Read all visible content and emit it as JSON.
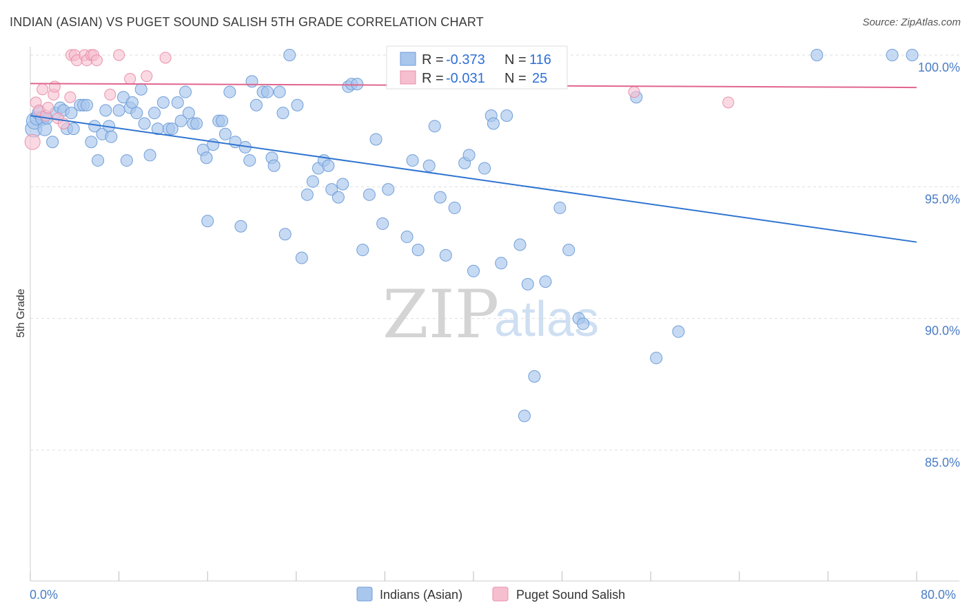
{
  "title": "INDIAN (ASIAN) VS PUGET SOUND SALISH 5TH GRADE CORRELATION CHART",
  "source": "Source: ZipAtlas.com",
  "watermark": {
    "zip": "ZIP",
    "atlas": "atlas"
  },
  "colors": {
    "blue_fill": "#a9c6ec",
    "blue_stroke": "#6f9ed8",
    "blue_line": "#2f74d0",
    "pink_fill": "#f6bfd0",
    "pink_stroke": "#e98fab",
    "pink_line": "#e0648e",
    "tick_text": "#4a7cc4",
    "grid": "#dddddd"
  },
  "legend_box": {
    "rows": [
      {
        "r_label": "R =",
        "r_value": "-0.373",
        "n_label": "N =",
        "n_value": "116",
        "color": "#a9c6ec"
      },
      {
        "r_label": "R =",
        "r_value": "-0.031",
        "n_label": "N =",
        "n_value": "25",
        "color": "#f6bfd0"
      }
    ]
  },
  "chart_data": {
    "type": "scatter",
    "title": "INDIAN (ASIAN) VS PUGET SOUND SALISH 5TH GRADE CORRELATION CHART",
    "xlabel": "",
    "ylabel": "5th Grade",
    "xlim": [
      0,
      80
    ],
    "ylim": [
      80.5,
      100.8
    ],
    "x_tick_labels": [
      "0.0%",
      "80.0%"
    ],
    "y_ticks": [
      85,
      90,
      95,
      100
    ],
    "y_tick_labels": [
      "85.0%",
      "90.0%",
      "95.0%",
      "100.0%"
    ],
    "grid": "horizontal dashed",
    "legend_position": "bottom",
    "series": [
      {
        "name": "Indians (Asian)",
        "color": "#a9c6ec",
        "trend": {
          "x": [
            0,
            80
          ],
          "y": [
            97.7,
            92.9
          ]
        },
        "points": [
          [
            0.3,
            97.2
          ],
          [
            0.4,
            97.5
          ],
          [
            0.6,
            97.6
          ],
          [
            0.8,
            97.8
          ],
          [
            1.1,
            97.6
          ],
          [
            1.3,
            97.2
          ],
          [
            1.5,
            97.6
          ],
          [
            2.0,
            96.7
          ],
          [
            2.3,
            97.8
          ],
          [
            2.7,
            98.0
          ],
          [
            3.0,
            97.9
          ],
          [
            3.3,
            97.2
          ],
          [
            3.7,
            97.8
          ],
          [
            3.9,
            97.2
          ],
          [
            4.5,
            98.1
          ],
          [
            4.8,
            98.1
          ],
          [
            5.1,
            98.1
          ],
          [
            5.5,
            96.7
          ],
          [
            5.8,
            97.3
          ],
          [
            6.1,
            96.0
          ],
          [
            6.5,
            97.0
          ],
          [
            6.8,
            97.9
          ],
          [
            7.1,
            97.3
          ],
          [
            7.3,
            96.9
          ],
          [
            8.0,
            97.9
          ],
          [
            8.4,
            98.4
          ],
          [
            8.7,
            96.0
          ],
          [
            9.0,
            98.0
          ],
          [
            9.2,
            98.2
          ],
          [
            9.6,
            97.8
          ],
          [
            10.0,
            98.7
          ],
          [
            10.3,
            97.4
          ],
          [
            10.8,
            96.2
          ],
          [
            11.2,
            97.8
          ],
          [
            11.5,
            97.2
          ],
          [
            12.0,
            98.2
          ],
          [
            12.5,
            97.2
          ],
          [
            12.8,
            97.2
          ],
          [
            13.3,
            98.2
          ],
          [
            13.6,
            97.5
          ],
          [
            14.0,
            98.6
          ],
          [
            14.3,
            97.8
          ],
          [
            14.7,
            97.4
          ],
          [
            15.0,
            97.4
          ],
          [
            15.6,
            96.4
          ],
          [
            15.9,
            96.1
          ],
          [
            16.0,
            93.7
          ],
          [
            16.5,
            96.6
          ],
          [
            17.0,
            97.5
          ],
          [
            17.3,
            97.5
          ],
          [
            17.6,
            97.0
          ],
          [
            18.0,
            98.6
          ],
          [
            18.5,
            96.7
          ],
          [
            19.0,
            93.5
          ],
          [
            19.4,
            96.5
          ],
          [
            19.8,
            96.0
          ],
          [
            20.0,
            99.0
          ],
          [
            20.4,
            98.1
          ],
          [
            21.0,
            98.6
          ],
          [
            21.4,
            98.6
          ],
          [
            21.8,
            96.1
          ],
          [
            22.0,
            95.8
          ],
          [
            22.5,
            98.6
          ],
          [
            22.8,
            97.8
          ],
          [
            23.0,
            93.2
          ],
          [
            23.4,
            100.0
          ],
          [
            24.1,
            98.1
          ],
          [
            24.5,
            92.3
          ],
          [
            25.0,
            94.7
          ],
          [
            25.5,
            95.2
          ],
          [
            26.0,
            95.7
          ],
          [
            26.5,
            96.0
          ],
          [
            26.9,
            95.8
          ],
          [
            27.2,
            94.9
          ],
          [
            27.8,
            94.6
          ],
          [
            28.2,
            95.1
          ],
          [
            28.7,
            98.8
          ],
          [
            29.0,
            98.9
          ],
          [
            29.5,
            98.9
          ],
          [
            30.0,
            92.6
          ],
          [
            30.6,
            94.7
          ],
          [
            31.2,
            96.8
          ],
          [
            31.8,
            93.6
          ],
          [
            32.3,
            94.9
          ],
          [
            33.6,
            100.0
          ],
          [
            34.0,
            93.1
          ],
          [
            34.5,
            96.0
          ],
          [
            35.0,
            92.6
          ],
          [
            36.0,
            95.8
          ],
          [
            36.5,
            97.3
          ],
          [
            37.0,
            94.6
          ],
          [
            37.5,
            92.4
          ],
          [
            38.3,
            94.2
          ],
          [
            39.2,
            95.9
          ],
          [
            39.6,
            96.2
          ],
          [
            40.0,
            91.8
          ],
          [
            41.0,
            95.7
          ],
          [
            41.6,
            97.7
          ],
          [
            41.8,
            97.4
          ],
          [
            42.5,
            92.1
          ],
          [
            43.0,
            97.7
          ],
          [
            44.2,
            92.8
          ],
          [
            44.6,
            86.3
          ],
          [
            44.9,
            91.3
          ],
          [
            45.5,
            87.8
          ],
          [
            46.5,
            91.4
          ],
          [
            47.0,
            100.0
          ],
          [
            47.5,
            100.0
          ],
          [
            47.8,
            94.2
          ],
          [
            48.6,
            92.6
          ],
          [
            49.5,
            90.0
          ],
          [
            49.9,
            89.8
          ],
          [
            54.7,
            98.4
          ],
          [
            56.5,
            88.5
          ],
          [
            58.5,
            89.5
          ],
          [
            71.0,
            100.0
          ],
          [
            77.8,
            100.0
          ],
          [
            79.6,
            100.0
          ]
        ]
      },
      {
        "name": "Puget Sound Salish",
        "color": "#f6bfd0",
        "trend": {
          "x": [
            0,
            80
          ],
          "y": [
            98.92,
            98.77
          ]
        },
        "points": [
          [
            0.2,
            96.7
          ],
          [
            0.5,
            98.2
          ],
          [
            0.8,
            97.9
          ],
          [
            1.1,
            98.7
          ],
          [
            1.4,
            97.7
          ],
          [
            1.6,
            98.0
          ],
          [
            2.1,
            98.5
          ],
          [
            2.2,
            98.8
          ],
          [
            2.5,
            97.6
          ],
          [
            3.0,
            97.4
          ],
          [
            3.6,
            98.4
          ],
          [
            3.7,
            100.0
          ],
          [
            4.0,
            100.0
          ],
          [
            4.2,
            99.8
          ],
          [
            4.9,
            100.0
          ],
          [
            5.1,
            99.8
          ],
          [
            5.5,
            100.0
          ],
          [
            5.7,
            100.0
          ],
          [
            6.0,
            99.8
          ],
          [
            7.2,
            98.5
          ],
          [
            8.0,
            100.0
          ],
          [
            9.0,
            99.1
          ],
          [
            10.5,
            99.2
          ],
          [
            12.2,
            99.9
          ],
          [
            54.5,
            98.6
          ],
          [
            63.0,
            98.2
          ]
        ]
      }
    ]
  }
}
